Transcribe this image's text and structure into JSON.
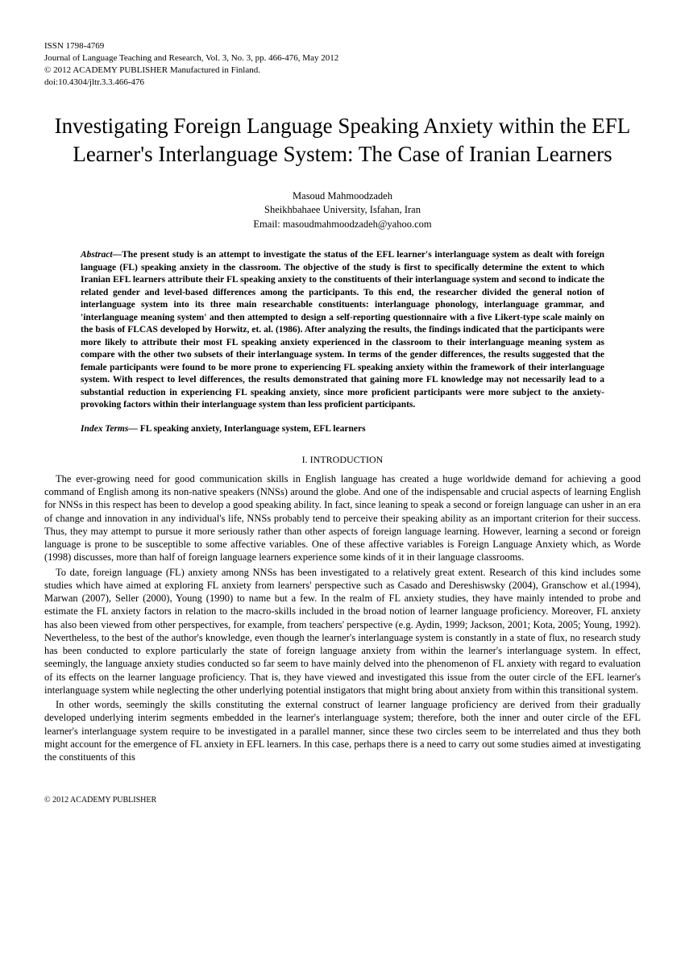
{
  "meta": {
    "issn": "ISSN 1798-4769",
    "journal": "Journal of Language Teaching and Research, Vol. 3, No. 3, pp. 466-476, May 2012",
    "copyright": "© 2012 ACADEMY PUBLISHER Manufactured in Finland.",
    "doi": "doi:10.4304/jltr.3.3.466-476"
  },
  "title": "Investigating Foreign Language Speaking Anxiety within the EFL Learner's Interlanguage System: The Case of Iranian Learners",
  "author": {
    "name": "Masoud Mahmoodzadeh",
    "affiliation": "Sheikhbahaee University, Isfahan, Iran",
    "email": "Email: masoudmahmoodzadeh@yahoo.com"
  },
  "abstract": {
    "label": "Abstract—",
    "text": "The present study is an attempt to investigate the status of the EFL learner's interlanguage system as dealt with foreign language (FL) speaking anxiety in the classroom. The objective of the study is first to specifically determine the extent to which Iranian EFL learners attribute their FL speaking anxiety to the constituents of their interlanguage system and second to indicate the related gender and level-based differences among the participants. To this end, the researcher divided the general notion of interlanguage system into its three main researchable constituents: interlanguage phonology, interlanguage grammar, and 'interlanguage meaning system' and then attempted to design a self-reporting questionnaire with a five Likert-type scale mainly on the basis of FLCAS developed by Horwitz, et. al. (1986). After analyzing the results, the findings indicated that the participants were more likely to attribute their most FL speaking anxiety experienced in the classroom to their interlanguage meaning system as compare with the other two subsets of their interlanguage system. In terms of the gender differences, the results suggested that the female participants were found to be more prone to experiencing FL speaking anxiety within the framework of their interlanguage system. With respect to level differences, the results demonstrated that gaining more FL knowledge may not necessarily lead to a substantial reduction in experiencing FL speaking anxiety, since more proficient participants were more subject to the anxiety-provoking factors within their interlanguage system than less proficient participants."
  },
  "indexTerms": {
    "label": "Index Terms—",
    "text": " FL speaking anxiety, Interlanguage system, EFL learners"
  },
  "section1": {
    "heading": "I.   INTRODUCTION",
    "para1": "The ever-growing need for good communication skills in English language has created a huge worldwide demand for achieving a good command of English among its non-native speakers (NNSs) around the globe. And one of the indispensable and crucial aspects of learning English for NNSs in this respect has been to develop a good speaking ability. In fact, since leaning to speak a second or foreign language can usher in an era of change and innovation in any individual's life, NNSs probably tend to perceive their speaking ability as an important criterion for their success. Thus, they may attempt to pursue it more seriously rather than other aspects of foreign language learning. However, learning a second or foreign language is prone to be susceptible to some affective variables. One of these affective variables is Foreign Language Anxiety which, as Worde (1998) discusses, more than half of foreign language learners experience some kinds of it in their language classrooms.",
    "para2": "To date, foreign language (FL) anxiety among NNSs has been investigated to a relatively great extent. Research of this   kind   includes some studies which have aimed at exploring FL anxiety from learners' perspective such as Casado and Dereshiswsky (2004), Granschow et al.(1994), Marwan (2007), Seller (2000), Young (1990) to name but a few. In the realm of FL anxiety studies, they have mainly intended to probe and estimate the FL anxiety factors in relation to the macro-skills included in the broad notion of learner language proficiency. Moreover, FL anxiety has also been viewed from other perspectives, for example, from teachers' perspective (e.g. Aydin, 1999; Jackson, 2001; Kota, 2005; Young, 1992). Nevertheless, to the best of the author's knowledge, even though the learner's interlanguage system is constantly in a state of flux, no research study has been conducted to explore particularly the state of foreign language anxiety from within the learner's interlanguage system. In effect, seemingly, the language anxiety studies conducted so far seem to have mainly delved into the phenomenon of FL anxiety with regard to evaluation of its effects on the learner language proficiency. That is, they have viewed and investigated this issue from the outer circle of the EFL learner's interlanguage system while neglecting the other underlying potential instigators that might bring about anxiety from within this transitional system.",
    "para3": "In other words, seemingly the skills constituting the external construct of learner language proficiency are derived from their gradually developed underlying interim segments embedded in the learner's interlanguage system; therefore, both the inner and outer circle of the EFL learner's interlanguage system require to be investigated in a parallel manner, since these two circles seem to be interrelated and thus they both might account for the emergence of FL anxiety in EFL learners. In this case, perhaps there is a need to carry out some studies aimed at investigating the constituents of this"
  },
  "footer": "© 2012 ACADEMY PUBLISHER"
}
